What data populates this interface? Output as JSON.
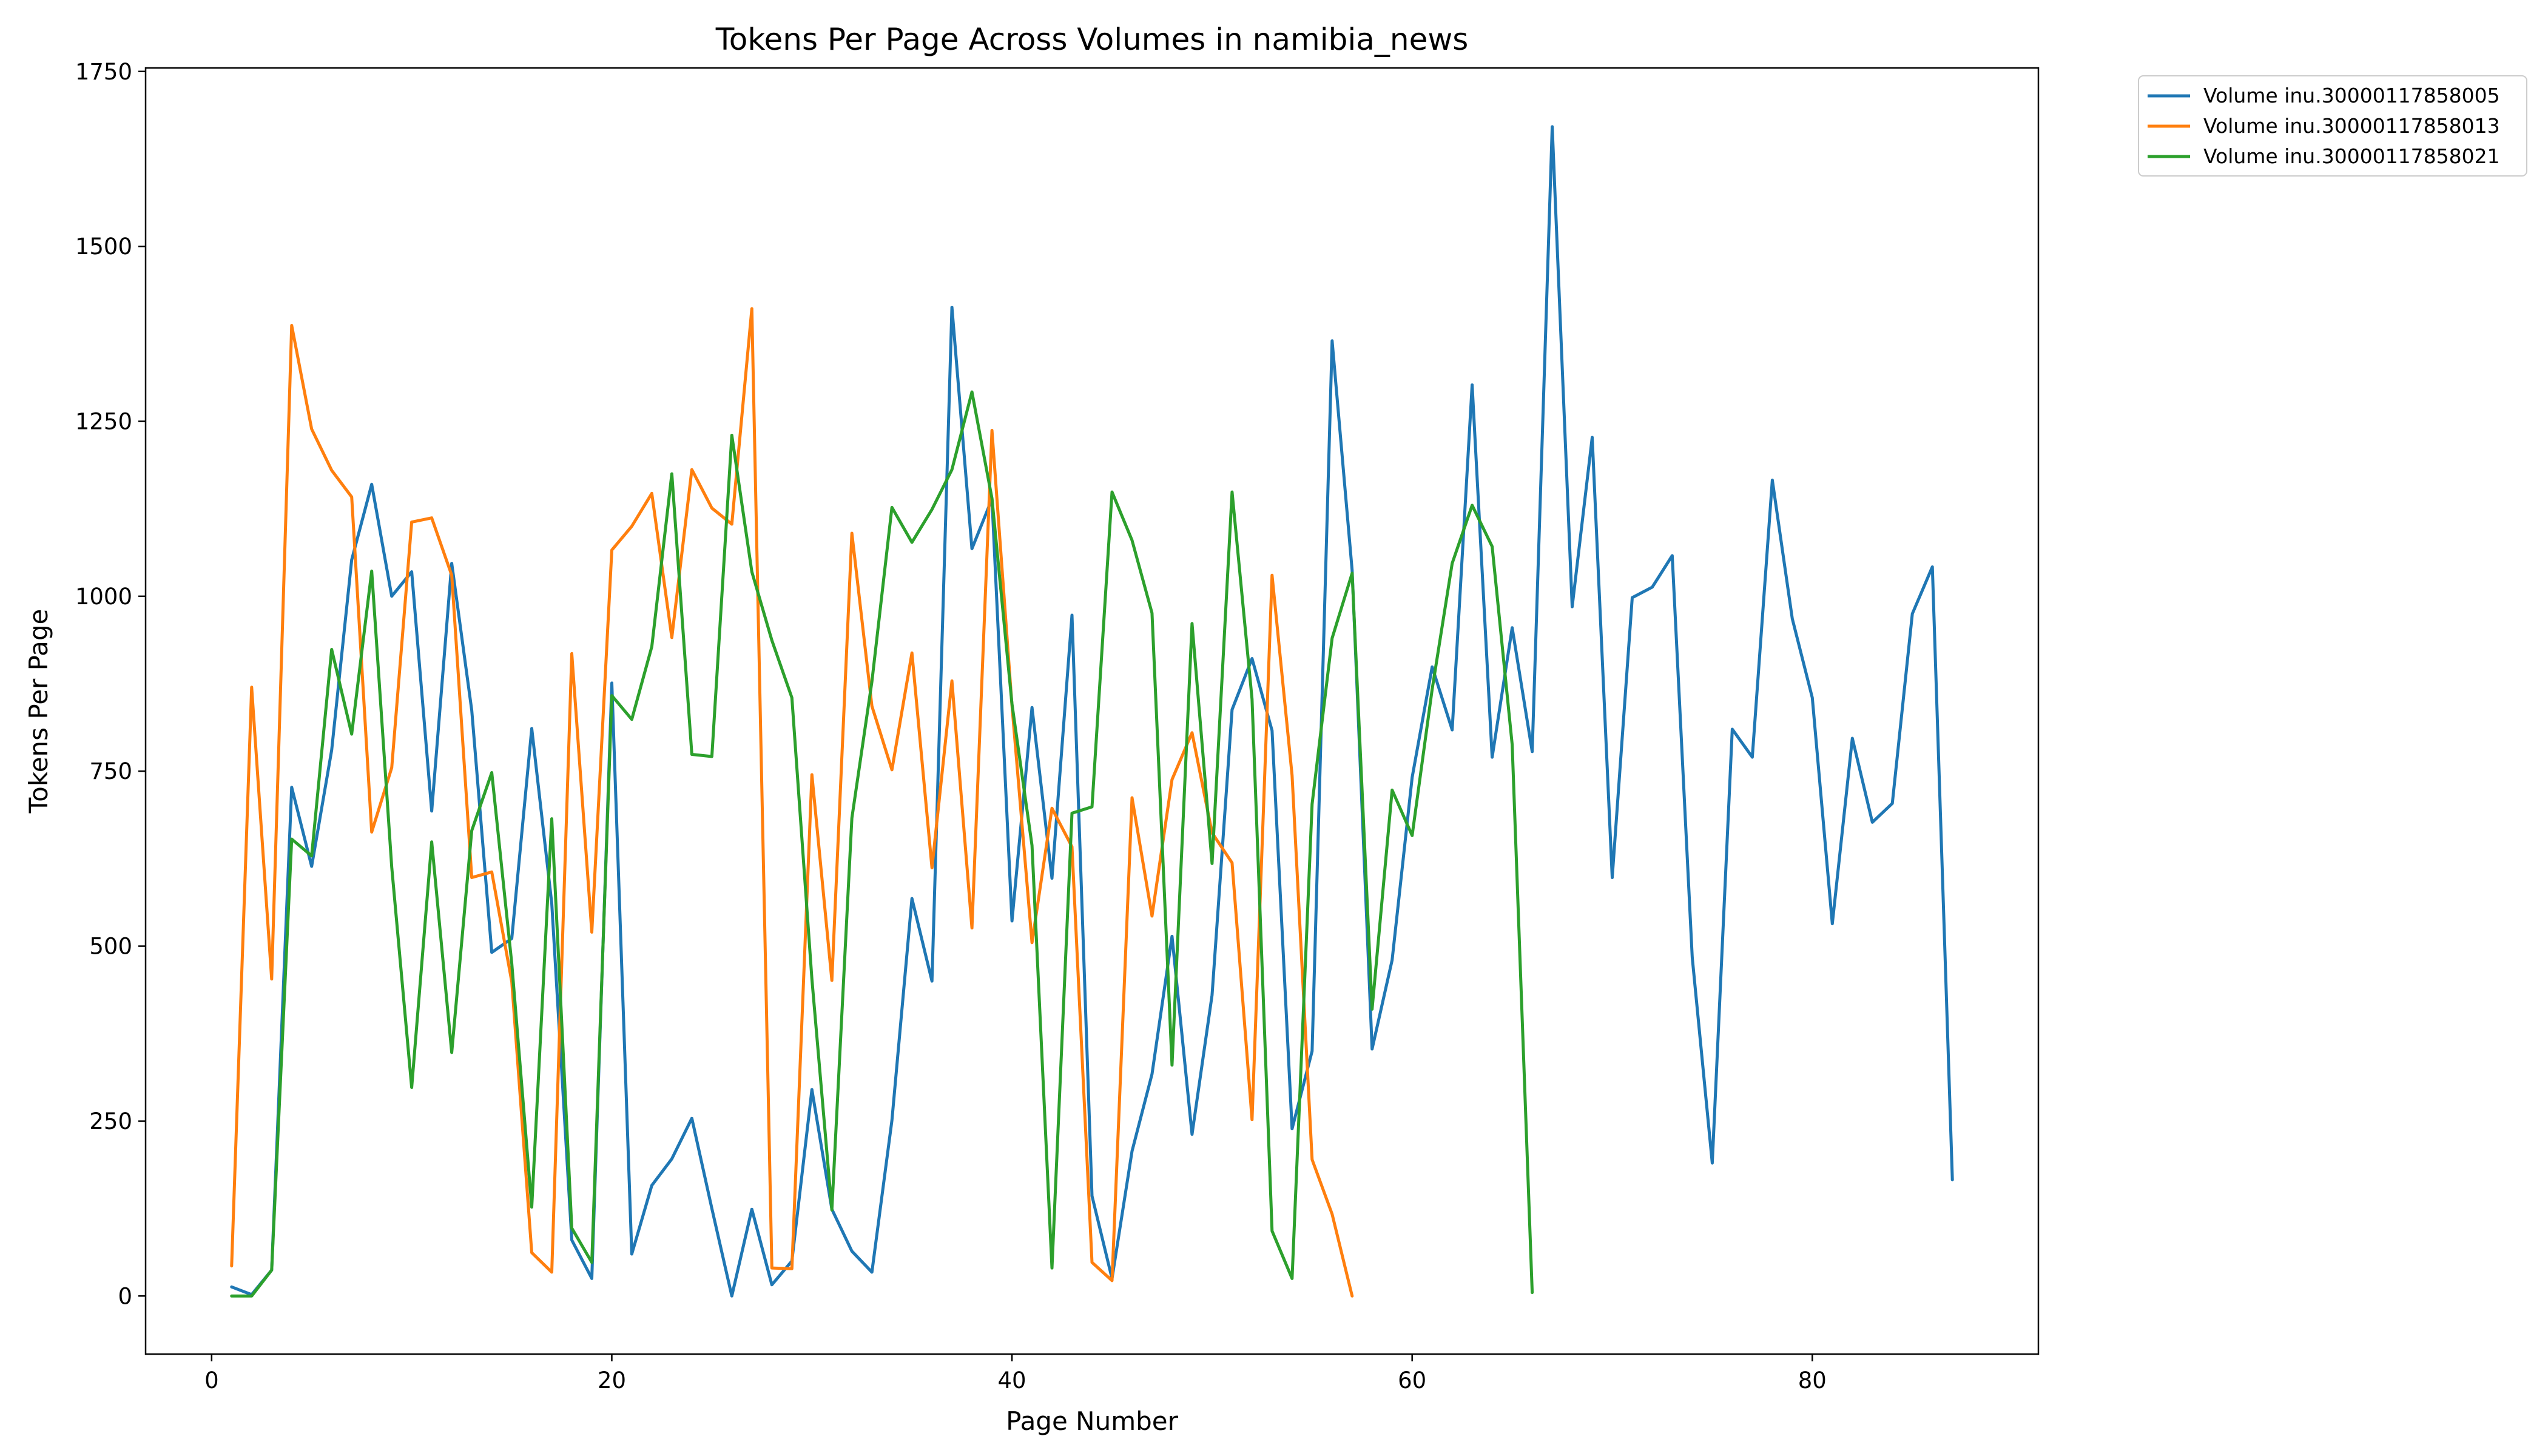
{
  "chart_data": {
    "type": "line",
    "title": "Tokens Per Page Across Volumes in namibia_news",
    "xlabel": "Page Number",
    "ylabel": "Tokens Per Page",
    "xlim": [
      -3.3,
      91.3
    ],
    "ylim": [
      -83,
      1755
    ],
    "xticks": [
      0,
      20,
      40,
      60,
      80
    ],
    "yticks": [
      0,
      250,
      500,
      750,
      1000,
      1250,
      1500,
      1750
    ],
    "grid": false,
    "legend_position": "outside-top-right",
    "series": [
      {
        "name": "Volume inu.30000117858005",
        "color": "#1f77b4",
        "x": [
          1,
          2,
          3,
          4,
          5,
          6,
          7,
          8,
          9,
          10,
          11,
          12,
          13,
          14,
          15,
          16,
          17,
          18,
          19,
          20,
          21,
          22,
          23,
          24,
          25,
          26,
          27,
          28,
          29,
          30,
          31,
          32,
          33,
          34,
          35,
          36,
          37,
          38,
          39,
          40,
          41,
          42,
          43,
          44,
          45,
          46,
          47,
          48,
          49,
          50,
          51,
          52,
          53,
          54,
          55,
          56,
          57,
          58,
          59,
          60,
          61,
          62,
          63,
          64,
          65,
          66,
          67,
          68,
          69,
          70,
          71,
          72,
          73,
          74,
          75,
          76,
          77,
          78,
          79,
          80,
          81,
          82,
          83,
          84,
          85,
          86,
          87
        ],
        "values": [
          13,
          2,
          37,
          727,
          614,
          780,
          1052,
          1160,
          1000,
          1035,
          693,
          1047,
          837,
          491,
          511,
          811,
          561,
          80,
          25,
          876,
          60,
          158,
          196,
          254,
          125,
          0,
          124,
          16,
          50,
          295,
          124,
          64,
          34,
          251,
          568,
          450,
          1413,
          1068,
          1139,
          536,
          841,
          597,
          973,
          143,
          25,
          207,
          317,
          514,
          231,
          430,
          838,
          911,
          808,
          239,
          350,
          1365,
          1037,
          353,
          480,
          741,
          899,
          809,
          1302,
          770,
          955,
          778,
          1671,
          985,
          1227,
          598,
          998,
          1013,
          1058,
          484,
          190,
          810,
          770,
          1166,
          968,
          855,
          532,
          797,
          677,
          704,
          975,
          1042,
          166
        ]
      },
      {
        "name": "Volume inu.30000117858013",
        "color": "#ff7f0e",
        "x": [
          1,
          2,
          3,
          4,
          5,
          6,
          7,
          8,
          9,
          10,
          11,
          12,
          13,
          14,
          15,
          16,
          17,
          18,
          19,
          20,
          21,
          22,
          23,
          24,
          25,
          26,
          27,
          28,
          29,
          30,
          31,
          32,
          33,
          34,
          35,
          36,
          37,
          38,
          39,
          40,
          41,
          42,
          43,
          44,
          45,
          46,
          47,
          48,
          49,
          50,
          51,
          52,
          53,
          54,
          55,
          56,
          57
        ],
        "values": [
          43,
          870,
          453,
          1387,
          1239,
          1180,
          1142,
          663,
          755,
          1106,
          1112,
          1030,
          598,
          606,
          449,
          62,
          34,
          918,
          520,
          1066,
          1100,
          1147,
          941,
          1181,
          1126,
          1103,
          1411,
          40,
          39,
          745,
          451,
          1090,
          843,
          752,
          919,
          612,
          879,
          526,
          1237,
          844,
          505,
          697,
          642,
          48,
          22,
          712,
          543,
          738,
          805,
          662,
          619,
          252,
          1030,
          744,
          195,
          117,
          0
        ]
      },
      {
        "name": "Volume inu.30000117858021",
        "color": "#2ca02c",
        "x": [
          1,
          2,
          3,
          4,
          5,
          6,
          7,
          8,
          9,
          10,
          11,
          12,
          13,
          14,
          15,
          16,
          17,
          18,
          19,
          20,
          21,
          22,
          23,
          24,
          25,
          26,
          27,
          28,
          29,
          30,
          31,
          32,
          33,
          34,
          35,
          36,
          37,
          38,
          39,
          40,
          41,
          42,
          43,
          44,
          45,
          46,
          47,
          48,
          49,
          50,
          51,
          52,
          53,
          54,
          55,
          56,
          57,
          58,
          59,
          60,
          61,
          62,
          63,
          64,
          65,
          66
        ],
        "values": [
          0,
          0,
          37,
          653,
          629,
          924,
          803,
          1036,
          613,
          298,
          649,
          348,
          665,
          748,
          475,
          127,
          682,
          97,
          48,
          858,
          824,
          928,
          1175,
          774,
          771,
          1230,
          1035,
          937,
          855,
          453,
          123,
          683,
          878,
          1127,
          1077,
          1124,
          1181,
          1292,
          1140,
          846,
          644,
          40,
          690,
          699,
          1149,
          1080,
          976,
          330,
          961,
          618,
          1149,
          853,
          93,
          25,
          703,
          940,
          1033,
          410,
          723,
          658,
          867,
          1047,
          1130,
          1071,
          788,
          5
        ]
      }
    ]
  }
}
